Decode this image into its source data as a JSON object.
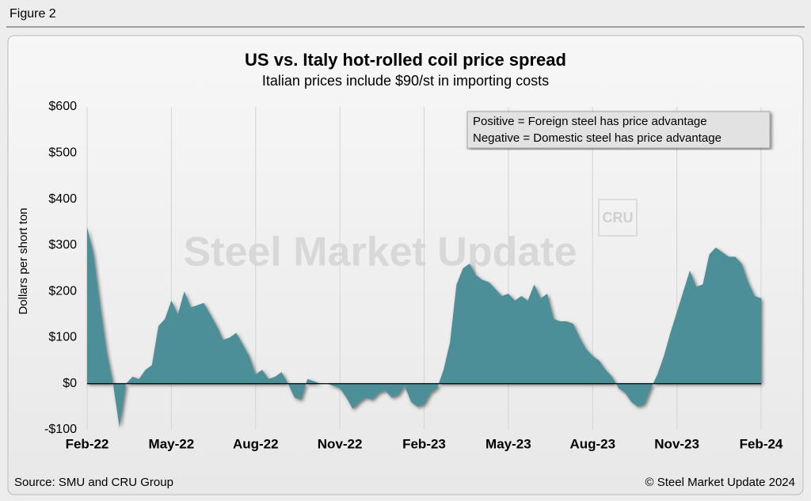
{
  "figure_label": "Figure 2",
  "chart_data": {
    "type": "area",
    "title": "US vs. Italy hot-rolled coil price spread",
    "subtitle": "Italian prices include $90/st in importing costs",
    "y_label": "Dollars per short ton",
    "annotations": [
      "Positive = Foreign steel has price advantage",
      "Negative = Domestic steel has price advantage"
    ],
    "watermarks": [
      "Steel Market Update",
      "CRU"
    ],
    "source": "Source: SMU and CRU Group",
    "copyright": "© Steel Market Update 2024",
    "color": "#4e8f98",
    "grid": "x",
    "categories": [
      "Feb-22",
      null,
      null,
      null,
      null,
      null,
      null,
      null,
      null,
      null,
      null,
      null,
      null,
      "May-22",
      null,
      null,
      null,
      null,
      null,
      null,
      null,
      null,
      null,
      null,
      null,
      null,
      "Aug-22",
      null,
      null,
      null,
      null,
      null,
      null,
      null,
      null,
      null,
      null,
      null,
      null,
      "Nov-22",
      null,
      null,
      null,
      null,
      null,
      null,
      null,
      null,
      null,
      null,
      null,
      null,
      "Feb-23",
      null,
      null,
      null,
      null,
      null,
      null,
      null,
      null,
      null,
      null,
      null,
      null,
      "May-23",
      null,
      null,
      null,
      null,
      null,
      null,
      null,
      null,
      null,
      null,
      null,
      null,
      "Aug-23",
      null,
      null,
      null,
      null,
      null,
      null,
      null,
      null,
      null,
      null,
      null,
      null,
      "Nov-23",
      null,
      null,
      null,
      null,
      null,
      null,
      null,
      null,
      null,
      null,
      null,
      null,
      "Feb-24"
    ],
    "values": [
      340,
      280,
      170,
      70,
      0,
      -95,
      0,
      15,
      10,
      30,
      40,
      125,
      140,
      180,
      150,
      200,
      165,
      170,
      175,
      150,
      125,
      95,
      100,
      110,
      85,
      60,
      20,
      30,
      10,
      15,
      25,
      0,
      -30,
      -35,
      10,
      5,
      0,
      0,
      -5,
      -10,
      -30,
      -55,
      -40,
      -30,
      -35,
      -20,
      -15,
      -30,
      -25,
      -5,
      -40,
      -50,
      -45,
      -20,
      -10,
      30,
      90,
      215,
      250,
      260,
      235,
      225,
      220,
      205,
      190,
      195,
      180,
      190,
      180,
      215,
      185,
      195,
      140,
      135,
      135,
      130,
      100,
      75,
      60,
      50,
      30,
      15,
      -10,
      -20,
      -40,
      -50,
      -45,
      -10,
      20,
      60,
      110,
      155,
      200,
      245,
      210,
      215,
      280,
      295,
      285,
      275,
      275,
      260,
      220,
      190,
      185
    ],
    "ylim": [
      -100,
      600
    ],
    "yticks": [
      {
        "value": 600,
        "label": "$600"
      },
      {
        "value": 500,
        "label": "$500"
      },
      {
        "value": 400,
        "label": "$400"
      },
      {
        "value": 300,
        "label": "$300"
      },
      {
        "value": 200,
        "label": "$200"
      },
      {
        "value": 100,
        "label": "$100"
      },
      {
        "value": 0,
        "label": "$0"
      },
      {
        "value": -100,
        "label": "-$100"
      }
    ]
  }
}
